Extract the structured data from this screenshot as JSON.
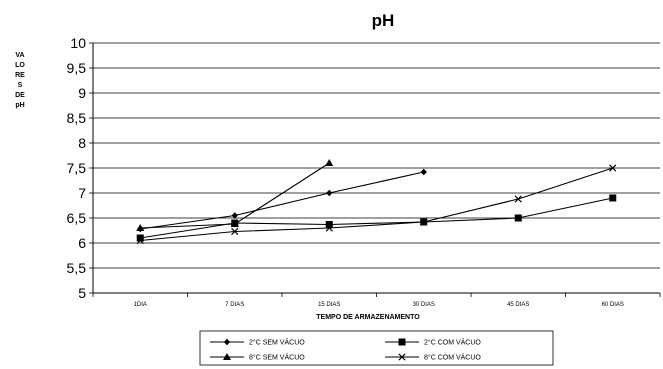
{
  "chart_data": {
    "type": "line",
    "title": "pH",
    "xlabel": "TEMPO DE ARMAZENAMENTO",
    "ylabel_lines": [
      "VA",
      "LO",
      "RE",
      "S",
      "DE",
      "pH"
    ],
    "categories": [
      "1DIA",
      "7 DIAS",
      "15 DIAS",
      "30 DIAS",
      "45 DIAS",
      "60 DIAS"
    ],
    "ylim": [
      5,
      10
    ],
    "yticks": [
      "5",
      "5,5",
      "6",
      "6,5",
      "7",
      "7,5",
      "8",
      "8,5",
      "9",
      "9,5",
      "10"
    ],
    "grid": true,
    "legend_position": "bottom",
    "series": [
      {
        "name": "2°C SEM VÁCUO",
        "marker": "diamond",
        "values": [
          6.28,
          6.55,
          7.0,
          7.42,
          null,
          null
        ]
      },
      {
        "name": "2°C COM VÁCUO",
        "marker": "square",
        "values": [
          6.1,
          6.4,
          6.37,
          6.42,
          6.5,
          6.9
        ]
      },
      {
        "name": "8°C SEM VÁCUO",
        "marker": "triangle",
        "values": [
          6.3,
          6.38,
          7.6,
          null,
          null,
          null
        ]
      },
      {
        "name": "8°C COM VÁCUO",
        "marker": "x",
        "values": [
          6.05,
          6.23,
          6.3,
          6.42,
          6.88,
          7.5
        ]
      }
    ]
  }
}
